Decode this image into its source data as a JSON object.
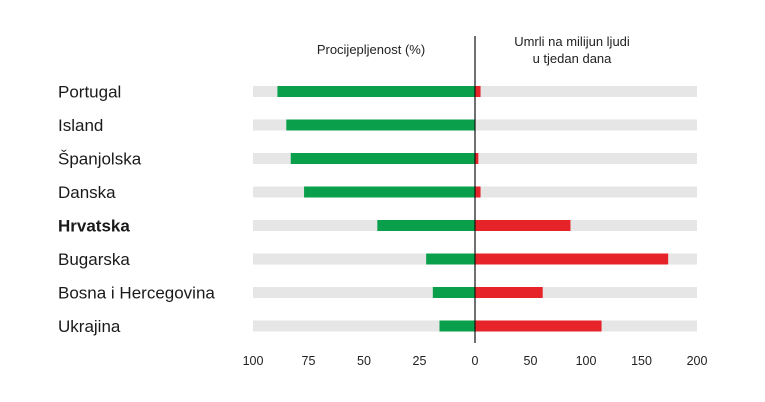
{
  "chart_data": {
    "type": "bar",
    "categories": [
      "Portugal",
      "Island",
      "Španjolska",
      "Danska",
      "Hrvatska",
      "Bugarska",
      "Bosna i Hercegovina",
      "Ukrajina"
    ],
    "highlight": "Hrvatska",
    "series": [
      {
        "name": "Procijepljenost (%)",
        "side": "left",
        "color": "#0aa04b",
        "max": 100,
        "values": [
          89,
          85,
          83,
          77,
          44,
          22,
          19,
          16
        ]
      },
      {
        "name": "Umrli na milijun ljudi u tjedan dana",
        "side": "right",
        "color": "#e52329",
        "max": 200,
        "values": [
          5,
          0,
          3,
          5,
          86,
          174,
          61,
          114
        ]
      }
    ],
    "header_left": "Procijepljenost (%)",
    "header_right_lines": [
      "Umrli na milijun ljudi",
      "u tjedan dana"
    ],
    "left_ticks": [
      "100",
      "75",
      "50",
      "25",
      "0"
    ],
    "right_ticks": [
      "0",
      "50",
      "100",
      "150",
      "200"
    ],
    "track_color": "#e6e6e6",
    "axis_color": "#111111"
  }
}
